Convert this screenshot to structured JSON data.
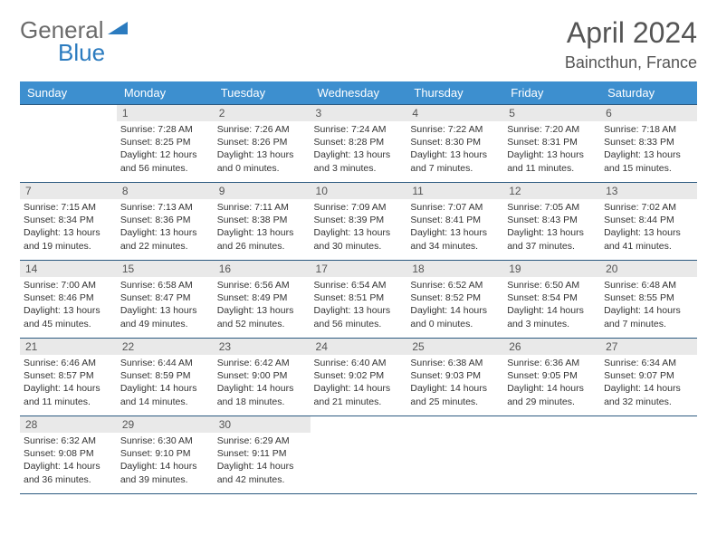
{
  "logo": {
    "text1": "General",
    "text2": "Blue",
    "shape_color": "#2b7bbf"
  },
  "title": "April 2024",
  "location": "Baincthun, France",
  "colors": {
    "header_bg": "#3d8fcf",
    "header_text": "#ffffff",
    "border": "#2c5a80",
    "daynum_bg": "#e9e9e9",
    "text": "#333333"
  },
  "weekdays": [
    "Sunday",
    "Monday",
    "Tuesday",
    "Wednesday",
    "Thursday",
    "Friday",
    "Saturday"
  ],
  "weeks": [
    [
      {
        "empty": true
      },
      {
        "n": "1",
        "sr": "7:28 AM",
        "ss": "8:25 PM",
        "dl": "12 hours and 56 minutes."
      },
      {
        "n": "2",
        "sr": "7:26 AM",
        "ss": "8:26 PM",
        "dl": "13 hours and 0 minutes."
      },
      {
        "n": "3",
        "sr": "7:24 AM",
        "ss": "8:28 PM",
        "dl": "13 hours and 3 minutes."
      },
      {
        "n": "4",
        "sr": "7:22 AM",
        "ss": "8:30 PM",
        "dl": "13 hours and 7 minutes."
      },
      {
        "n": "5",
        "sr": "7:20 AM",
        "ss": "8:31 PM",
        "dl": "13 hours and 11 minutes."
      },
      {
        "n": "6",
        "sr": "7:18 AM",
        "ss": "8:33 PM",
        "dl": "13 hours and 15 minutes."
      }
    ],
    [
      {
        "n": "7",
        "sr": "7:15 AM",
        "ss": "8:34 PM",
        "dl": "13 hours and 19 minutes."
      },
      {
        "n": "8",
        "sr": "7:13 AM",
        "ss": "8:36 PM",
        "dl": "13 hours and 22 minutes."
      },
      {
        "n": "9",
        "sr": "7:11 AM",
        "ss": "8:38 PM",
        "dl": "13 hours and 26 minutes."
      },
      {
        "n": "10",
        "sr": "7:09 AM",
        "ss": "8:39 PM",
        "dl": "13 hours and 30 minutes."
      },
      {
        "n": "11",
        "sr": "7:07 AM",
        "ss": "8:41 PM",
        "dl": "13 hours and 34 minutes."
      },
      {
        "n": "12",
        "sr": "7:05 AM",
        "ss": "8:43 PM",
        "dl": "13 hours and 37 minutes."
      },
      {
        "n": "13",
        "sr": "7:02 AM",
        "ss": "8:44 PM",
        "dl": "13 hours and 41 minutes."
      }
    ],
    [
      {
        "n": "14",
        "sr": "7:00 AM",
        "ss": "8:46 PM",
        "dl": "13 hours and 45 minutes."
      },
      {
        "n": "15",
        "sr": "6:58 AM",
        "ss": "8:47 PM",
        "dl": "13 hours and 49 minutes."
      },
      {
        "n": "16",
        "sr": "6:56 AM",
        "ss": "8:49 PM",
        "dl": "13 hours and 52 minutes."
      },
      {
        "n": "17",
        "sr": "6:54 AM",
        "ss": "8:51 PM",
        "dl": "13 hours and 56 minutes."
      },
      {
        "n": "18",
        "sr": "6:52 AM",
        "ss": "8:52 PM",
        "dl": "14 hours and 0 minutes."
      },
      {
        "n": "19",
        "sr": "6:50 AM",
        "ss": "8:54 PM",
        "dl": "14 hours and 3 minutes."
      },
      {
        "n": "20",
        "sr": "6:48 AM",
        "ss": "8:55 PM",
        "dl": "14 hours and 7 minutes."
      }
    ],
    [
      {
        "n": "21",
        "sr": "6:46 AM",
        "ss": "8:57 PM",
        "dl": "14 hours and 11 minutes."
      },
      {
        "n": "22",
        "sr": "6:44 AM",
        "ss": "8:59 PM",
        "dl": "14 hours and 14 minutes."
      },
      {
        "n": "23",
        "sr": "6:42 AM",
        "ss": "9:00 PM",
        "dl": "14 hours and 18 minutes."
      },
      {
        "n": "24",
        "sr": "6:40 AM",
        "ss": "9:02 PM",
        "dl": "14 hours and 21 minutes."
      },
      {
        "n": "25",
        "sr": "6:38 AM",
        "ss": "9:03 PM",
        "dl": "14 hours and 25 minutes."
      },
      {
        "n": "26",
        "sr": "6:36 AM",
        "ss": "9:05 PM",
        "dl": "14 hours and 29 minutes."
      },
      {
        "n": "27",
        "sr": "6:34 AM",
        "ss": "9:07 PM",
        "dl": "14 hours and 32 minutes."
      }
    ],
    [
      {
        "n": "28",
        "sr": "6:32 AM",
        "ss": "9:08 PM",
        "dl": "14 hours and 36 minutes."
      },
      {
        "n": "29",
        "sr": "6:30 AM",
        "ss": "9:10 PM",
        "dl": "14 hours and 39 minutes."
      },
      {
        "n": "30",
        "sr": "6:29 AM",
        "ss": "9:11 PM",
        "dl": "14 hours and 42 minutes."
      },
      {
        "empty": true
      },
      {
        "empty": true
      },
      {
        "empty": true
      },
      {
        "empty": true
      }
    ]
  ],
  "labels": {
    "sunrise": "Sunrise:",
    "sunset": "Sunset:",
    "daylight": "Daylight:"
  }
}
